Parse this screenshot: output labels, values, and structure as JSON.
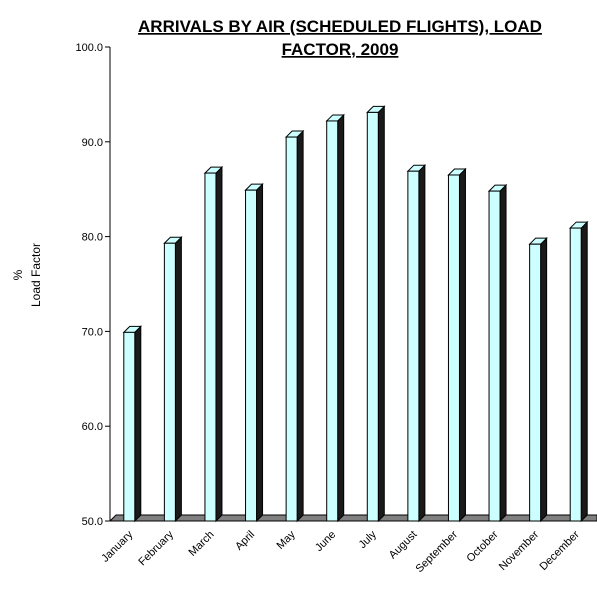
{
  "chart_data": {
    "type": "bar",
    "title_lines": [
      "ARRIVALS BY AIR (SCHEDULED FLIGHTS), LOAD",
      "FACTOR, 2009"
    ],
    "ylabel_lines": [
      "%",
      "Load Factor"
    ],
    "xlabel": "",
    "categories": [
      "January",
      "February",
      "March",
      "April",
      "May",
      "June",
      "July",
      "August",
      "September",
      "October",
      "November",
      "December"
    ],
    "values": [
      69.9,
      79.3,
      86.7,
      84.9,
      90.5,
      92.2,
      93.1,
      86.9,
      86.5,
      84.8,
      79.2,
      80.9
    ],
    "ylim": [
      50.0,
      100.0
    ],
    "yticks": [
      "50.0",
      "60.0",
      "70.0",
      "80.0",
      "90.0",
      "100.0"
    ],
    "grid": false,
    "legend": "none",
    "colors": {
      "bar": "#ccffff",
      "bar_side": "#1a1a1a",
      "floor": "#808080"
    }
  }
}
